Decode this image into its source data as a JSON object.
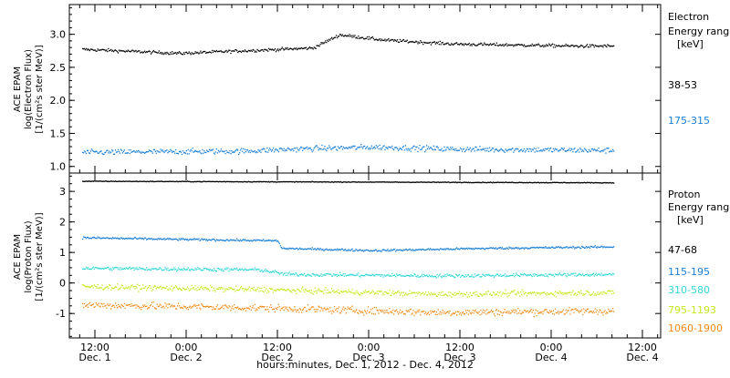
{
  "chart_data": [
    {
      "type": "scatter",
      "panel": "electron",
      "ylabel_lines": [
        "ACE EPAM",
        "log(Electron Flux)",
        "[1/(cm²s ster MeV)]"
      ],
      "yticks": [
        "1.0",
        "1.5",
        "2.0",
        "2.5",
        "3.0"
      ],
      "ylim": [
        0.9,
        3.45
      ],
      "legend_title_lines": [
        "Electron",
        "Energy range",
        "[keV]"
      ],
      "series": [
        {
          "name": "38-53",
          "color": "#000000",
          "baseline": 2.78,
          "profile": [
            [
              0,
              2.78
            ],
            [
              110,
              2.72
            ],
            [
              260,
              2.8
            ],
            [
              290,
              3.0
            ],
            [
              340,
              2.92
            ],
            [
              420,
              2.86
            ],
            [
              560,
              2.83
            ],
            [
              600,
              2.83
            ]
          ],
          "noise": 0.04
        },
        {
          "name": "175-315",
          "color": "#1a7fd6",
          "baseline": 1.22,
          "profile": [
            [
              0,
              1.22
            ],
            [
              180,
              1.24
            ],
            [
              260,
              1.28
            ],
            [
              330,
              1.3
            ],
            [
              420,
              1.27
            ],
            [
              600,
              1.25
            ]
          ],
          "noise": 0.07
        }
      ]
    },
    {
      "type": "scatter",
      "panel": "proton",
      "ylabel_lines": [
        "ACE EPAM",
        "log(Proton Flux)",
        "[1/(cm²s ster MeV)]"
      ],
      "yticks": [
        "-1",
        "0",
        "1",
        "2",
        "3"
      ],
      "ylim": [
        -1.8,
        3.6
      ],
      "legend_title_lines": [
        "Proton",
        "Energy range",
        "[keV]"
      ],
      "series": [
        {
          "name": "47-68",
          "color": "#000000",
          "profile": [
            [
              0,
              3.35
            ],
            [
              600,
              3.3
            ]
          ],
          "noise": 0.02
        },
        {
          "name": "115-195",
          "color": "#1a7fd6",
          "profile": [
            [
              0,
              1.5
            ],
            [
              100,
              1.45
            ],
            [
              220,
              1.4
            ],
            [
              225,
              1.15
            ],
            [
              330,
              1.08
            ],
            [
              450,
              1.15
            ],
            [
              600,
              1.2
            ]
          ],
          "noise": 0.06
        },
        {
          "name": "310-580",
          "color": "#33d6d6",
          "profile": [
            [
              0,
              0.5
            ],
            [
              200,
              0.45
            ],
            [
              230,
              0.3
            ],
            [
              400,
              0.25
            ],
            [
              600,
              0.3
            ]
          ],
          "noise": 0.1
        },
        {
          "name": "795-1193",
          "color": "#c8e61e",
          "profile": [
            [
              0,
              -0.1
            ],
            [
              200,
              -0.2
            ],
            [
              400,
              -0.35
            ],
            [
              600,
              -0.3
            ]
          ],
          "noise": 0.15
        },
        {
          "name": "1060-1900",
          "color": "#f28a14",
          "profile": [
            [
              0,
              -0.7
            ],
            [
              200,
              -0.8
            ],
            [
              400,
              -0.95
            ],
            [
              600,
              -0.9
            ]
          ],
          "noise": 0.2
        }
      ]
    }
  ],
  "x_axis": {
    "ticks": [
      {
        "time": "12:00",
        "date": "Dec. 1"
      },
      {
        "time": "0:00",
        "date": "Dec. 2"
      },
      {
        "time": "12:00",
        "date": "Dec. 2"
      },
      {
        "time": "0:00",
        "date": "Dec. 3"
      },
      {
        "time": "12:00",
        "date": "Dec. 3"
      },
      {
        "time": "0:00",
        "date": "Dec. 4"
      },
      {
        "time": "12:00",
        "date": "Dec. 4"
      }
    ],
    "title": "hours:minutes, Dec.  1, 2012 - Dec.  4, 2012"
  }
}
